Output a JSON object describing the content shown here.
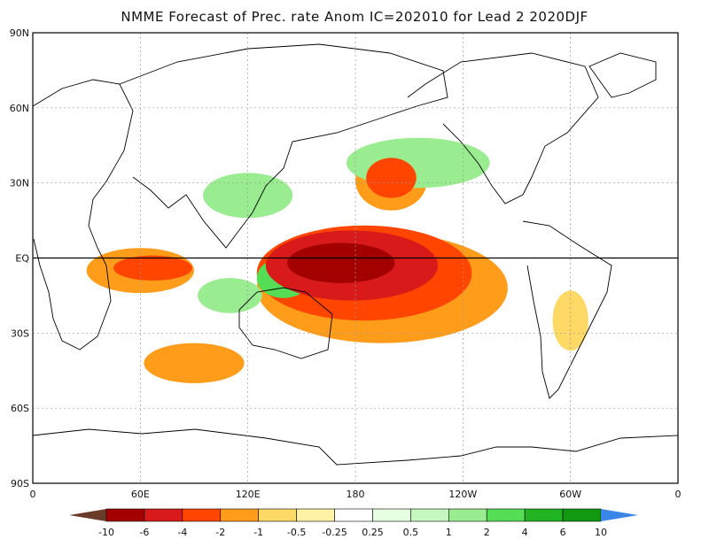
{
  "title": "NMME Forecast of Prec. rate Anom IC=202010 for Lead 2 2020DJF",
  "axes": {
    "y_ticks": [
      "90N",
      "60N",
      "30N",
      "EQ",
      "30S",
      "60S",
      "90S"
    ],
    "y_values": [
      90,
      60,
      30,
      0,
      -30,
      -60,
      -90
    ],
    "x_ticks": [
      "0",
      "60E",
      "120E",
      "180",
      "120W",
      "60W",
      "0"
    ],
    "x_values": [
      0,
      60,
      120,
      180,
      240,
      300,
      360
    ]
  },
  "colorbar": {
    "labels": [
      "-10",
      "-6",
      "-4",
      "-2",
      "-1",
      "-0.5",
      "-0.25",
      "0.25",
      "0.5",
      "1",
      "2",
      "4",
      "6",
      "10"
    ],
    "colors": [
      "#6b3b2a",
      "#a30000",
      "#d81a1a",
      "#ff4500",
      "#ff9c1a",
      "#ffd966",
      "#fff2a6",
      "#ffffff",
      "#e6ffe0",
      "#c6f7c0",
      "#99ec8f",
      "#55dd55",
      "#22b322",
      "#129912",
      "#3a86e8"
    ]
  },
  "colors": {
    "ocean_bg": "#ffffff",
    "coast": "#000000",
    "grid": "#999999"
  },
  "anomalies": [
    {
      "lon": 172,
      "lat": -2,
      "rx": 30,
      "ry": 8,
      "level": "-6"
    },
    {
      "lon": 178,
      "lat": -3,
      "rx": 48,
      "ry": 14,
      "level": "-4"
    },
    {
      "lon": 185,
      "lat": -6,
      "rx": 60,
      "ry": 19,
      "level": "-2"
    },
    {
      "lon": 195,
      "lat": -12,
      "rx": 70,
      "ry": 22,
      "level": "-1"
    },
    {
      "lon": 200,
      "lat": 32,
      "rx": 14,
      "ry": 8,
      "level": "-2"
    },
    {
      "lon": 200,
      "lat": 31,
      "rx": 20,
      "ry": 12,
      "level": "-1"
    },
    {
      "lon": 67,
      "lat": -4,
      "rx": 22,
      "ry": 5,
      "level": "-2"
    },
    {
      "lon": 60,
      "lat": -5,
      "rx": 30,
      "ry": 9,
      "level": "-1"
    },
    {
      "lon": 90,
      "lat": -42,
      "rx": 28,
      "ry": 8,
      "level": "-1"
    },
    {
      "lon": 120,
      "lat": 25,
      "rx": 25,
      "ry": 9,
      "level": "1"
    },
    {
      "lon": 215,
      "lat": 38,
      "rx": 40,
      "ry": 10,
      "level": "1"
    },
    {
      "lon": 140,
      "lat": -8,
      "rx": 15,
      "ry": 8,
      "level": "2"
    },
    {
      "lon": 110,
      "lat": -15,
      "rx": 18,
      "ry": 7,
      "level": "1"
    },
    {
      "lon": 300,
      "lat": -25,
      "rx": 10,
      "ry": 12,
      "level": "-0.5"
    }
  ]
}
